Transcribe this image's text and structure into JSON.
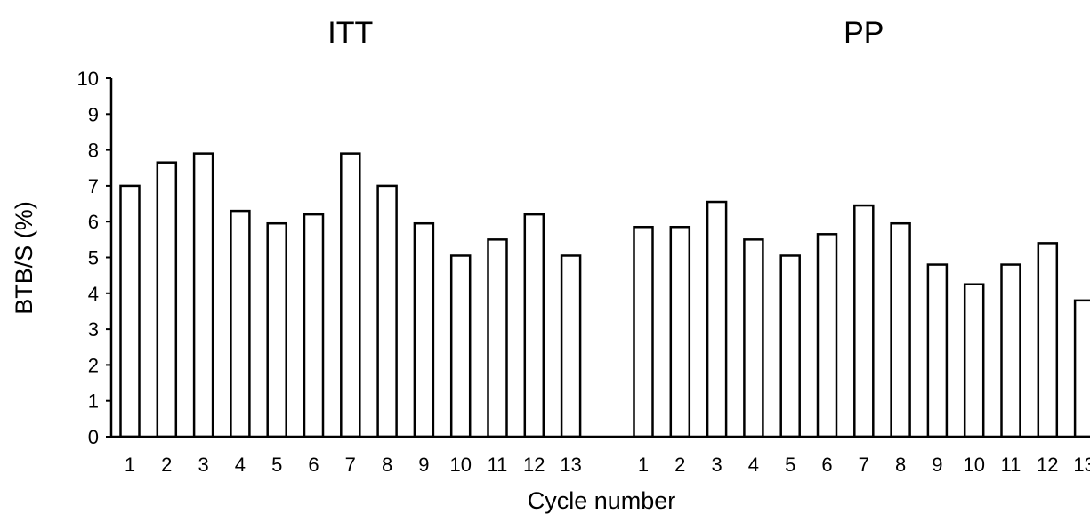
{
  "chart_data": {
    "type": "bar",
    "ylabel": "BTB/S (%)",
    "xlabel": "Cycle number",
    "ylim": [
      0,
      10
    ],
    "yticks": [
      0,
      1,
      2,
      3,
      4,
      5,
      6,
      7,
      8,
      9,
      10
    ],
    "grid": false,
    "legend": "none",
    "bar_fill": "#ffffff",
    "bar_stroke": "#000000",
    "categories": [
      "1",
      "2",
      "3",
      "4",
      "5",
      "6",
      "7",
      "8",
      "9",
      "10",
      "11",
      "12",
      "13"
    ],
    "panels": [
      {
        "title": "ITT",
        "values": [
          7.0,
          7.65,
          7.9,
          6.3,
          5.95,
          6.2,
          7.9,
          7.0,
          5.95,
          5.05,
          5.5,
          6.2,
          5.05
        ]
      },
      {
        "title": "PP",
        "values": [
          5.85,
          5.85,
          6.55,
          5.5,
          5.05,
          5.65,
          6.45,
          5.95,
          4.8,
          4.25,
          4.8,
          5.4,
          3.8
        ]
      }
    ]
  }
}
